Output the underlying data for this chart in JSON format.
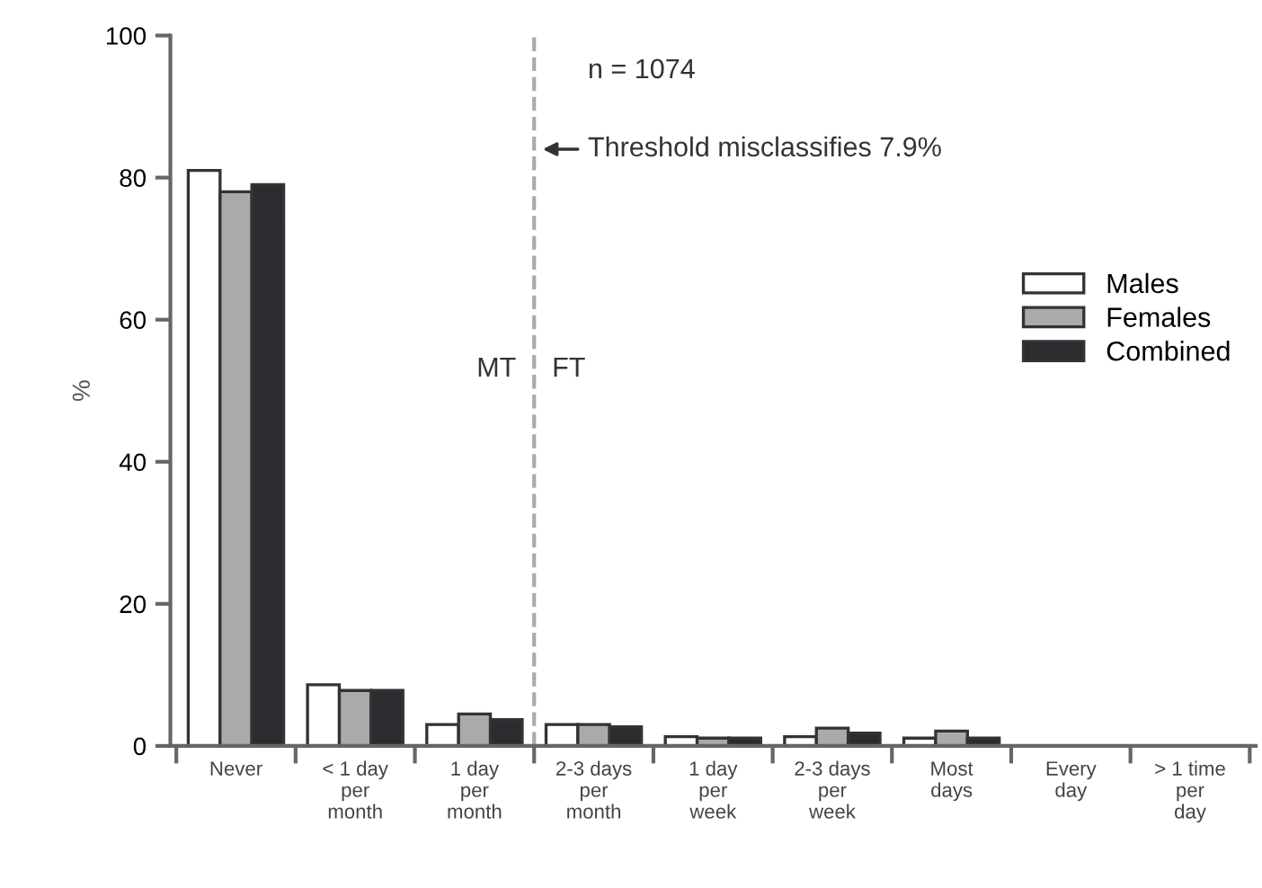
{
  "chart_data": {
    "type": "bar",
    "ylabel": "%",
    "categories": [
      "Never",
      "< 1 day\nper\nmonth",
      "1 day\nper\nmonth",
      "2-3 days\nper\nmonth",
      "1 day\nper\nweek",
      "2-3 days\nper\nweek",
      "Most\ndays",
      "Every\nday",
      "> 1 time\nper\nday"
    ],
    "series": [
      {
        "name": "Males",
        "color": "#ffffff",
        "values": [
          81,
          8.6,
          3.0,
          3.0,
          1.3,
          1.3,
          1.1,
          null,
          null
        ]
      },
      {
        "name": "Females",
        "color": "#a9aaac",
        "values": [
          78,
          7.8,
          4.5,
          3.0,
          1.1,
          2.5,
          2.1,
          null,
          null
        ]
      },
      {
        "name": "Combined",
        "color": "#2b2b30",
        "values": [
          79,
          7.8,
          3.7,
          2.7,
          1.1,
          1.8,
          1.1,
          null,
          null
        ]
      }
    ],
    "ylim": [
      0,
      100
    ],
    "yticks": [
      0,
      20,
      40,
      60,
      80,
      100
    ],
    "annotations": [
      "n = 1074",
      "Threshold misclassifies 7.9%",
      "MT",
      "FT"
    ],
    "grid": false,
    "legend": "right"
  }
}
